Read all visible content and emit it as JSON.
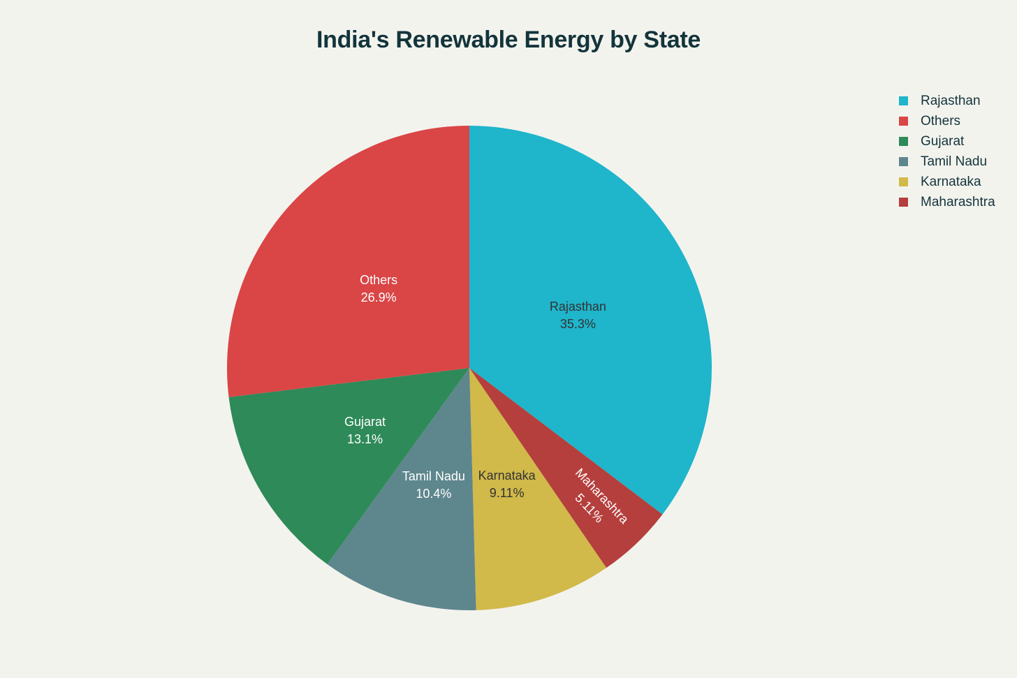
{
  "chart_data": {
    "type": "pie",
    "title": "India's Renewable Energy by State",
    "slices": [
      {
        "label": "Rajasthan",
        "percent_text": "35.3%",
        "value": 35.3,
        "color": "#1fb5cb",
        "text_color": "#333333"
      },
      {
        "label": "Maharashtra",
        "percent_text": "5.11%",
        "value": 5.11,
        "color": "#b43f3c",
        "text_color": "#ffffff"
      },
      {
        "label": "Karnataka",
        "percent_text": "9.11%",
        "value": 9.11,
        "color": "#d1b94a",
        "text_color": "#333333"
      },
      {
        "label": "Tamil Nadu",
        "percent_text": "10.4%",
        "value": 10.4,
        "color": "#5e868d",
        "text_color": "#ffffff"
      },
      {
        "label": "Gujarat",
        "percent_text": "13.1%",
        "value": 13.1,
        "color": "#2e8a58",
        "text_color": "#ffffff"
      },
      {
        "label": "Others",
        "percent_text": "26.9%",
        "value": 26.9,
        "color": "#da4546",
        "text_color": "#ffffff"
      }
    ],
    "direction": "clockwise",
    "start": "top",
    "legend": {
      "position": "top-right",
      "order": [
        "Rajasthan",
        "Others",
        "Gujarat",
        "Tamil Nadu",
        "Karnataka",
        "Maharashtra"
      ]
    }
  }
}
